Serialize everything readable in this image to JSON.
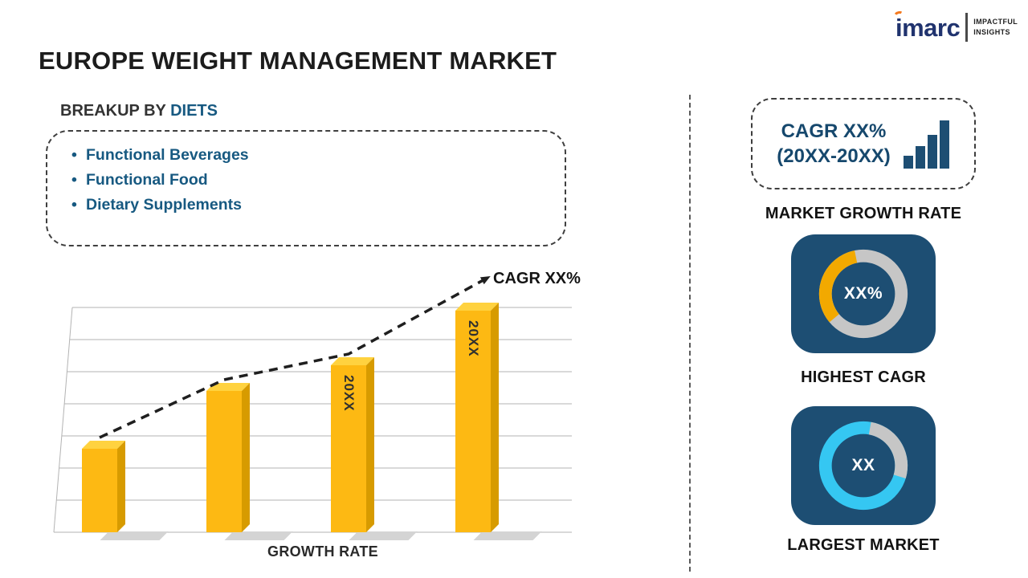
{
  "page": {
    "title": "EUROPE WEIGHT MANAGEMENT MARKET"
  },
  "logo": {
    "brand": "imarc",
    "tagline_line1": "IMPACTFUL",
    "tagline_line2": "INSIGHTS"
  },
  "breakup": {
    "heading_prefix": "BREAKUP BY",
    "heading_highlight": "DIETS",
    "items": [
      "Functional Beverages",
      "Functional Food",
      "Dietary Supplements"
    ]
  },
  "chart_data": {
    "type": "bar",
    "title": "",
    "categories": [
      "",
      "",
      "20XX",
      "20XX"
    ],
    "values": [
      32,
      54,
      64,
      85
    ],
    "bar_labels": [
      "",
      "",
      "20XX",
      "20XX"
    ],
    "trend_label": "CAGR XX%",
    "xlabel": "GROWTH RATE",
    "ylabel": "",
    "ylim": [
      0,
      100
    ],
    "grid": true,
    "legend": false,
    "bar_color": "#FDB913"
  },
  "right_panel": {
    "growth_card": {
      "line1": "CAGR XX%",
      "line2": "(20XX-20XX)",
      "caption": "MARKET GROWTH RATE"
    },
    "highest_cagr": {
      "value": "XX%",
      "caption": "HIGHEST CAGR"
    },
    "largest_market": {
      "value": "XX",
      "caption": "LARGEST MARKET"
    }
  },
  "colors": {
    "accent_blue": "#175981",
    "navy_card": "#1D4E73",
    "gold": "#FDB913",
    "cyan": "#35C7F2",
    "orange": "#F2A900",
    "ring_gray": "#C6C6C6"
  }
}
